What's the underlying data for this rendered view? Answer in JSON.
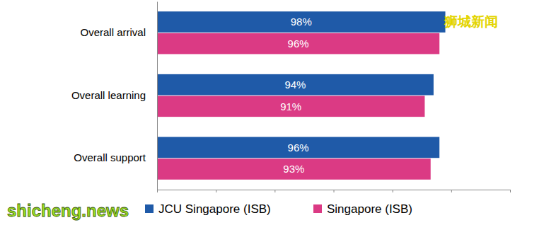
{
  "chart_data": {
    "type": "bar",
    "orientation": "horizontal",
    "categories": [
      "Overall arrival",
      "Overall learning",
      "Overall support"
    ],
    "series": [
      {
        "name": "JCU Singapore (ISB)",
        "color": "#1f5aa8",
        "values": [
          98,
          94,
          96
        ],
        "value_labels": [
          "98%",
          "94%",
          "96%"
        ]
      },
      {
        "name": "Singapore (ISB)",
        "color": "#db3a84",
        "values": [
          96,
          91,
          93
        ],
        "value_labels": [
          "96%",
          "91%",
          "93%"
        ]
      }
    ],
    "xlim": [
      0,
      120
    ],
    "xticks": [
      0,
      20,
      40,
      60,
      80,
      100,
      120
    ],
    "tick_labels": "y",
    "grid": false,
    "data_labels": true,
    "legend": "bottom",
    "annotations": [
      "狮城新闻",
      "shicheng.news"
    ]
  }
}
